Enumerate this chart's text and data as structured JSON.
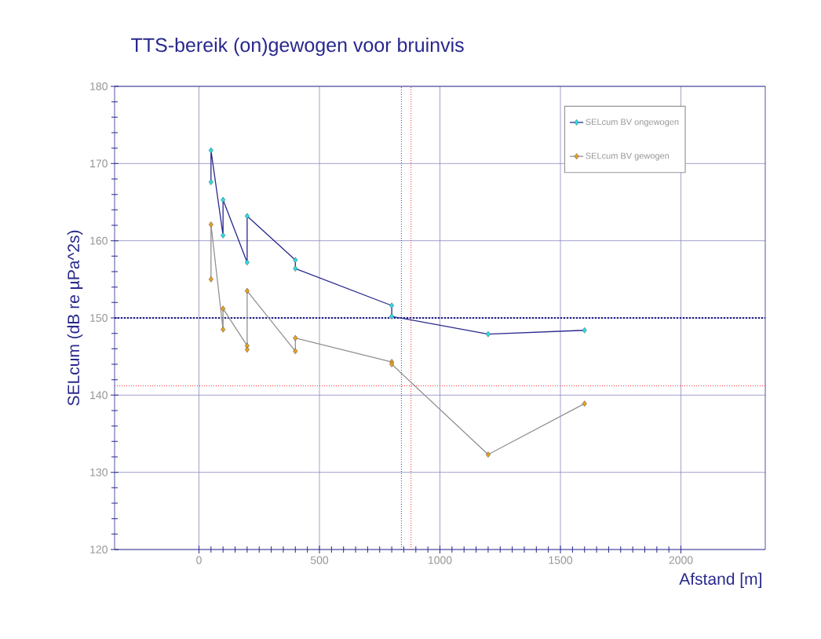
{
  "chart_data": {
    "type": "line",
    "title": "TTS-bereik (on)gewogen voor bruinvis",
    "xlabel": "Afstand [m]",
    "ylabel": "SELcum (dB re µPa^2s)",
    "series": [
      {
        "name": "SELcum BV ongewogen",
        "color": "#22e0e8",
        "x": [
          50,
          50,
          100,
          100,
          200,
          200,
          400,
          400,
          800,
          800,
          1200,
          1600
        ],
        "values": [
          167.6,
          171.7,
          160.7,
          165.3,
          157.2,
          163.2,
          157.5,
          156.4,
          151.6,
          150.2,
          147.9,
          148.4
        ]
      },
      {
        "name": "SELcum BV gewogen",
        "color": "#e8a020",
        "x": [
          50,
          50,
          100,
          100,
          200,
          200,
          200,
          400,
          400,
          800,
          800,
          1200,
          1600
        ],
        "values": [
          155.0,
          162.1,
          148.5,
          151.2,
          146.4,
          145.9,
          153.5,
          145.7,
          147.4,
          144.3,
          144.0,
          132.3,
          138.9
        ]
      }
    ],
    "xlim": [
      -350,
      2350
    ],
    "ylim": [
      120,
      180
    ],
    "xticks": [
      0,
      500,
      1000,
      1500,
      2000
    ],
    "yticks": [
      120,
      130,
      140,
      150,
      160,
      170,
      180
    ],
    "ref_lines": [
      {
        "axis": "y",
        "value": 150,
        "color": "#1a1a80",
        "line_style": "dotted"
      },
      {
        "axis": "x",
        "value": 840,
        "color": "#4040b0",
        "line_style": "dotted"
      },
      {
        "axis": "y",
        "value": 141.2,
        "color": "#ff3030",
        "line_style": "dotted"
      },
      {
        "axis": "x",
        "value": 880,
        "color": "#ff3030",
        "line_style": "dotted"
      }
    ],
    "grid": true,
    "legend": "top right",
    "marker": "diamond",
    "line_style": "solid"
  }
}
